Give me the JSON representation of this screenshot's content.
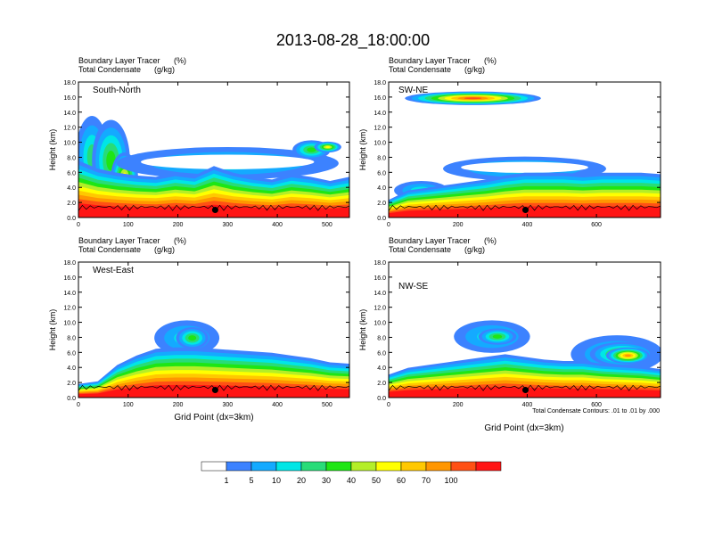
{
  "title": "2013-08-28_18:00:00",
  "chart_data": {
    "type": "contour-cross-section",
    "title": "2013-08-28_18:00:00",
    "fill_variable": "Boundary Layer Tracer",
    "fill_units": "(%)",
    "contour_variable": "Total Condensate",
    "contour_units": "(g/kg)",
    "contour_info": "Total Condensate Contours: .01 to .01 by .000",
    "xlabel": "Grid Point (dx=3km)",
    "ylabel": "Height (km)",
    "ylim": [
      0,
      18
    ],
    "y_ticks": [
      "0.0",
      "2.0",
      "4.0",
      "6.0",
      "8.0",
      "10.0",
      "12.0",
      "14.0",
      "16.0",
      "18.0"
    ],
    "panels": [
      {
        "name": "South-North",
        "xlim": [
          0,
          545
        ],
        "x_ticks": [
          0,
          100,
          200,
          300,
          400,
          500
        ],
        "marker_x": 275
      },
      {
        "name": "SW-NE",
        "xlim": [
          0,
          785
        ],
        "x_ticks": [
          0,
          200,
          400,
          600
        ],
        "marker_x": 395
      },
      {
        "name": "West-East",
        "xlim": [
          0,
          545
        ],
        "x_ticks": [
          0,
          100,
          200,
          300,
          400,
          500
        ],
        "marker_x": 275
      },
      {
        "name": "NW-SE",
        "xlim": [
          0,
          785
        ],
        "x_ticks": [
          0,
          200,
          400,
          600
        ],
        "marker_x": 395
      }
    ],
    "colorbar": {
      "levels": [
        "1",
        "5",
        "10",
        "20",
        "30",
        "40",
        "50",
        "60",
        "70",
        "100"
      ],
      "colors": [
        "#ffffff",
        "#3c82ff",
        "#14aaff",
        "#00e6e6",
        "#28dc78",
        "#1ee614",
        "#b4ee28",
        "#ffff00",
        "#ffc800",
        "#ff9600",
        "#ff5014",
        "#ff1414"
      ]
    }
  }
}
